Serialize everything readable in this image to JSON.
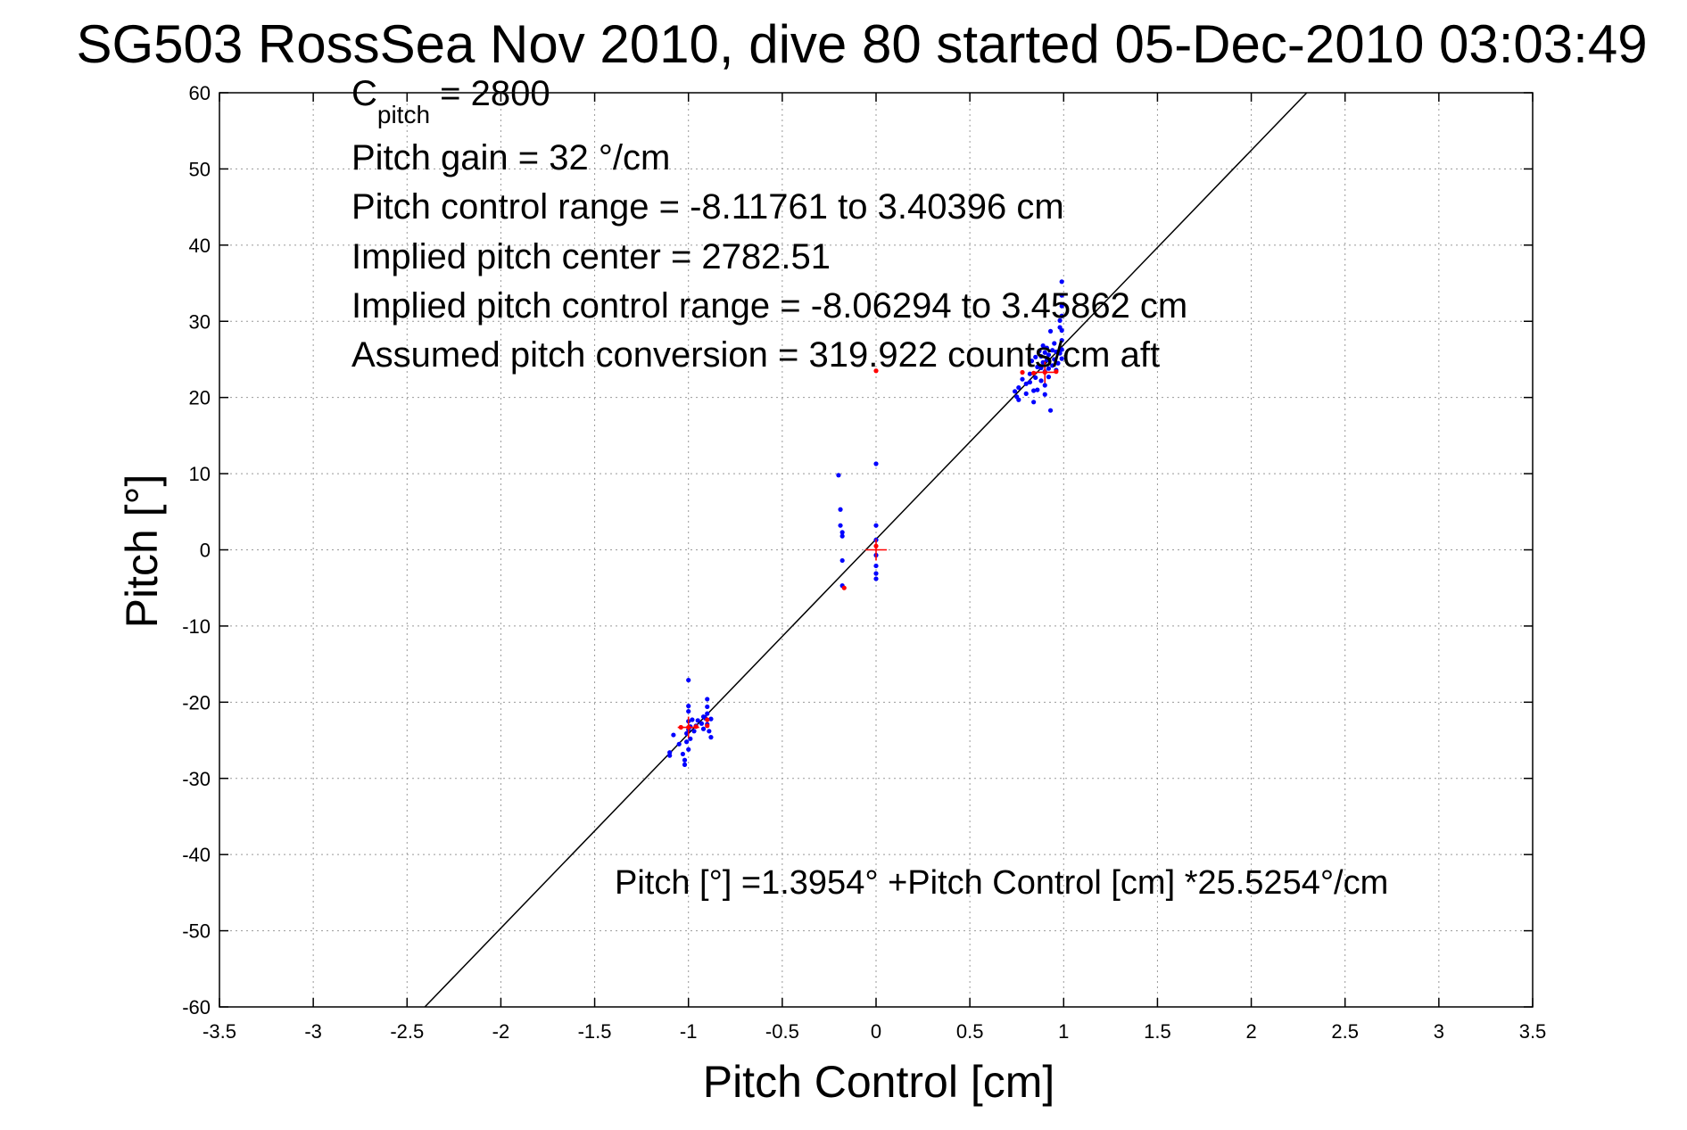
{
  "chart_data": {
    "type": "scatter",
    "title": "SG503 RossSea Nov 2010, dive 80 started 05-Dec-2010 03:03:49",
    "xlabel": "Pitch Control [cm]",
    "ylabel": "Pitch [°]",
    "xlim": [
      -3.5,
      3.5
    ],
    "ylim": [
      -60,
      60
    ],
    "xticks": [
      -3.5,
      -3,
      -2.5,
      -2,
      -1.5,
      -1,
      -0.5,
      0,
      0.5,
      1,
      1.5,
      2,
      2.5,
      3,
      3.5
    ],
    "yticks": [
      -60,
      -50,
      -40,
      -30,
      -20,
      -10,
      0,
      10,
      20,
      30,
      40,
      50,
      60
    ],
    "xtick_labels": [
      "-3.5",
      "-3",
      "-2.5",
      "-2",
      "-1.5",
      "-1",
      "-0.5",
      "0",
      "0.5",
      "1",
      "1.5",
      "2",
      "2.5",
      "3",
      "3.5"
    ],
    "ytick_labels": [
      "-60",
      "-50",
      "-40",
      "-30",
      "-20",
      "-10",
      "0",
      "10",
      "20",
      "30",
      "40",
      "50",
      "60"
    ],
    "grid": true,
    "annotations": {
      "c_pitch_base": "C",
      "c_pitch_sub": "pitch",
      "c_pitch_value": " = 2800",
      "pitch_gain": "Pitch gain = 32 °/cm",
      "pitch_control_range": "Pitch control range = -8.11761 to 3.40396 cm",
      "implied_pitch_center": "Implied pitch center = 2782.51",
      "implied_control_range": "Implied pitch control range = -8.06294 to 3.45862 cm",
      "assumed_conversion": "Assumed pitch conversion = 319.922 counts/cm aft",
      "fit_equation": "Pitch [°] =1.3954° +Pitch Control [cm] *25.5254°/cm"
    },
    "fit_line": {
      "intercept": 1.3954,
      "slope": 25.5254
    },
    "series": [
      {
        "color": "#0000ff",
        "points": [
          [
            -1.1,
            -27
          ],
          [
            -1.1,
            -26.6
          ],
          [
            -1.08,
            -24.3
          ],
          [
            -1.05,
            -25.5
          ],
          [
            -1.03,
            -26.8
          ],
          [
            -1.02,
            -27.6
          ],
          [
            -1.02,
            -28.2
          ],
          [
            -1.01,
            -25.2
          ],
          [
            -1.01,
            -24.1
          ],
          [
            -1.0,
            -26.2
          ],
          [
            -1.0,
            -23.6
          ],
          [
            -1.0,
            -22.5
          ],
          [
            -1.0,
            -21.2
          ],
          [
            -1.0,
            -20.5
          ],
          [
            -1.0,
            -17.1
          ],
          [
            -0.99,
            -24.8
          ],
          [
            -0.99,
            -23.2
          ],
          [
            -0.98,
            -22.3
          ],
          [
            -0.97,
            -23.8
          ],
          [
            -0.96,
            -23.1
          ],
          [
            -0.95,
            -22.4
          ],
          [
            -0.93,
            -22.8
          ],
          [
            -0.92,
            -21.9
          ],
          [
            -0.92,
            -23.5
          ],
          [
            -0.91,
            -22.1
          ],
          [
            -0.9,
            -21.5
          ],
          [
            -0.9,
            -20.6
          ],
          [
            -0.9,
            -19.6
          ],
          [
            -0.9,
            -22.9
          ],
          [
            -0.89,
            -23.8
          ],
          [
            -0.88,
            -22.2
          ],
          [
            -0.88,
            -24.6
          ],
          [
            -0.2,
            9.8
          ],
          [
            -0.19,
            5.3
          ],
          [
            -0.19,
            3.2
          ],
          [
            -0.18,
            2.3
          ],
          [
            -0.18,
            1.8
          ],
          [
            -0.18,
            -1.4
          ],
          [
            -0.18,
            -4.7
          ],
          [
            0.0,
            11.3
          ],
          [
            0.0,
            3.2
          ],
          [
            0.0,
            1.3
          ],
          [
            0.0,
            -0.7
          ],
          [
            0.0,
            -2.1
          ],
          [
            0.0,
            -3.1
          ],
          [
            0.0,
            -3.8
          ],
          [
            0.74,
            20.8
          ],
          [
            0.75,
            20.1
          ],
          [
            0.76,
            19.7
          ],
          [
            0.76,
            21.3
          ],
          [
            0.78,
            22.4
          ],
          [
            0.8,
            20.5
          ],
          [
            0.8,
            21.8
          ],
          [
            0.82,
            23.1
          ],
          [
            0.82,
            22.0
          ],
          [
            0.83,
            24.8
          ],
          [
            0.84,
            19.4
          ],
          [
            0.84,
            20.9
          ],
          [
            0.85,
            25.3
          ],
          [
            0.85,
            22.6
          ],
          [
            0.86,
            24.0
          ],
          [
            0.86,
            21.0
          ],
          [
            0.87,
            26.1
          ],
          [
            0.88,
            25.4
          ],
          [
            0.88,
            23.9
          ],
          [
            0.88,
            22.2
          ],
          [
            0.89,
            26.8
          ],
          [
            0.89,
            24.6
          ],
          [
            0.9,
            25.9
          ],
          [
            0.9,
            23.4
          ],
          [
            0.9,
            21.6
          ],
          [
            0.9,
            20.4
          ],
          [
            0.91,
            26.5
          ],
          [
            0.91,
            24.9
          ],
          [
            0.92,
            25.6
          ],
          [
            0.92,
            23.8
          ],
          [
            0.92,
            22.7
          ],
          [
            0.93,
            18.3
          ],
          [
            0.93,
            28.7
          ],
          [
            0.94,
            26.2
          ],
          [
            0.94,
            24.2
          ],
          [
            0.95,
            27.1
          ],
          [
            0.95,
            25.0
          ],
          [
            0.96,
            23.6
          ],
          [
            0.96,
            26.0
          ],
          [
            0.97,
            24.5
          ],
          [
            0.98,
            30.1
          ],
          [
            0.98,
            29.2
          ],
          [
            0.98,
            25.8
          ],
          [
            0.99,
            35.2
          ],
          [
            0.99,
            33.4
          ],
          [
            0.99,
            32.0
          ],
          [
            0.99,
            30.7
          ],
          [
            0.99,
            28.8
          ],
          [
            0.99,
            27.5
          ],
          [
            0.99,
            26.3
          ],
          [
            0.99,
            25.1
          ]
        ]
      },
      {
        "color": "#ff0000",
        "points": [
          [
            -1.04,
            -23.3
          ],
          [
            -1.0,
            -23.3
          ],
          [
            -0.96,
            -23.2
          ],
          [
            -0.9,
            -23.1
          ],
          [
            -0.9,
            -22.3
          ],
          [
            -0.17,
            -5.0
          ],
          [
            0.0,
            0.5
          ],
          [
            0.0,
            23.5
          ],
          [
            0.78,
            23.3
          ],
          [
            0.84,
            23.2
          ],
          [
            0.9,
            23.3
          ],
          [
            0.96,
            23.4
          ]
        ]
      }
    ],
    "crosshairs": [
      {
        "x": -1.0,
        "y": -23.3,
        "color": "#ff0000"
      },
      {
        "x": 0.0,
        "y": 0.0,
        "color": "#ff0000"
      },
      {
        "x": 0.9,
        "y": 23.3,
        "color": "#ff0000"
      }
    ]
  }
}
